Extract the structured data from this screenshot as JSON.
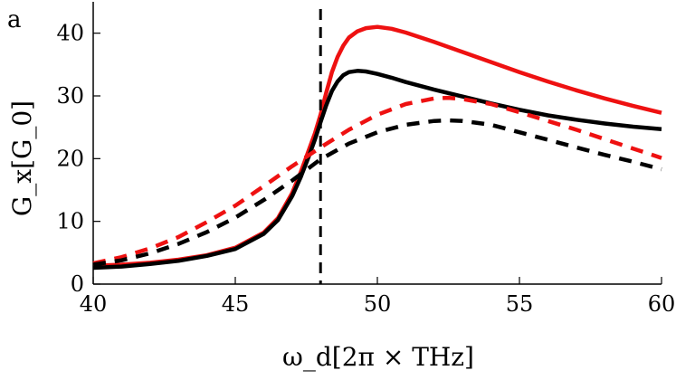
{
  "panel_label": "a",
  "chart_data": {
    "type": "line",
    "title": "",
    "xlabel": "ω_d[2π × THz]",
    "ylabel": "G_x[G_0]",
    "xlim": [
      40,
      60
    ],
    "ylim": [
      0,
      45
    ],
    "xticks": [
      40,
      45,
      50,
      55,
      60
    ],
    "yticks": [
      0,
      10,
      20,
      30,
      40
    ],
    "grid": false,
    "legend": "none",
    "vline": {
      "x": 48,
      "style": "dashed",
      "color": "#000000"
    },
    "series": [
      {
        "style": "solid",
        "color": "#ee1111",
        "x": [
          40,
          41,
          42,
          43,
          44,
          45,
          46,
          46.5,
          47,
          47.3,
          47.6,
          47.8,
          48,
          48.2,
          48.4,
          48.6,
          48.8,
          49,
          49.3,
          49.6,
          50,
          50.5,
          51,
          52,
          53,
          54,
          55,
          56,
          57,
          58,
          59,
          60
        ],
        "y": [
          2.9,
          3.1,
          3.4,
          3.9,
          4.6,
          5.8,
          8.2,
          10.5,
          14.5,
          17.8,
          21.5,
          24,
          27,
          30.5,
          33.8,
          36.2,
          38,
          39.3,
          40.3,
          40.8,
          41,
          40.7,
          40.1,
          38.6,
          37,
          35.4,
          33.8,
          32.3,
          30.9,
          29.6,
          28.4,
          27.3
        ]
      },
      {
        "style": "solid",
        "color": "#000000",
        "x": [
          40,
          41,
          42,
          43,
          44,
          45,
          46,
          46.5,
          47,
          47.3,
          47.6,
          47.8,
          48,
          48.2,
          48.4,
          48.6,
          48.8,
          49,
          49.3,
          49.6,
          50,
          50.5,
          51,
          52,
          53,
          54,
          55,
          56,
          57,
          58,
          59,
          60
        ],
        "y": [
          2.6,
          2.8,
          3.2,
          3.7,
          4.5,
          5.6,
          8,
          10.2,
          14,
          17,
          20.5,
          23,
          25.8,
          28.5,
          30.8,
          32.3,
          33.3,
          33.8,
          34,
          33.9,
          33.5,
          32.9,
          32.2,
          31,
          29.9,
          28.8,
          27.8,
          26.9,
          26.2,
          25.6,
          25.1,
          24.7
        ]
      },
      {
        "style": "dashed",
        "color": "#ee1111",
        "x": [
          40,
          41,
          42,
          43,
          44,
          45,
          46,
          47,
          48,
          49,
          50,
          51,
          52,
          52.5,
          53,
          54,
          55,
          56,
          57,
          58,
          59,
          60
        ],
        "y": [
          3.3,
          4.3,
          5.7,
          7.5,
          9.9,
          12.5,
          15.6,
          18.8,
          21.8,
          24.6,
          27,
          28.7,
          29.6,
          29.7,
          29.5,
          28.7,
          27.4,
          26,
          24.6,
          23.1,
          21.6,
          20.1
        ]
      },
      {
        "style": "dashed",
        "color": "#000000",
        "x": [
          40,
          41,
          42,
          43,
          44,
          45,
          46,
          47,
          48,
          49,
          50,
          51,
          52,
          52.5,
          53,
          54,
          55,
          56,
          57,
          58,
          59,
          60
        ],
        "y": [
          3.1,
          3.8,
          4.9,
          6.4,
          8.3,
          10.6,
          13.4,
          16.5,
          19.9,
          22.4,
          24.2,
          25.4,
          26,
          26.1,
          26,
          25.4,
          24.2,
          23,
          21.8,
          20.6,
          19.5,
          18.3
        ]
      }
    ]
  }
}
